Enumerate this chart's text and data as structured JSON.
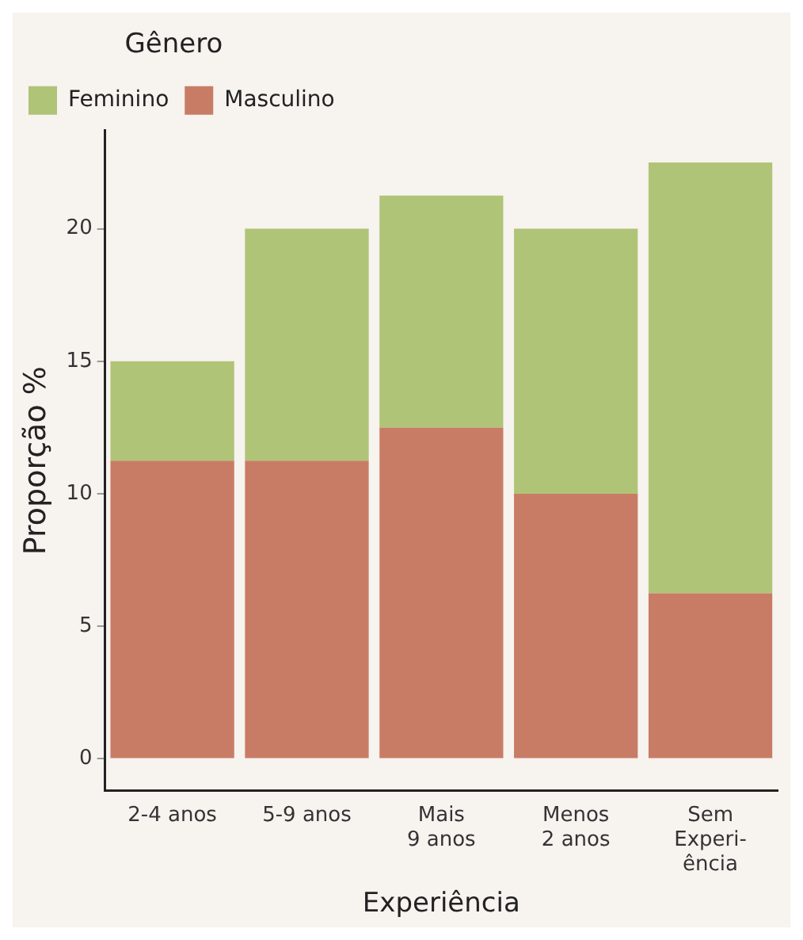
{
  "chart_data": {
    "type": "bar",
    "stacked": true,
    "xlabel": "Experiência",
    "ylabel": "Proporção %",
    "legend_title": "Gênero",
    "legend": "top left",
    "grid": false,
    "categories": [
      "2-4 anos",
      "5-9 anos",
      "Mais\n9 anos",
      "Menos\n2 anos",
      "Sem\nExperi-\nência"
    ],
    "series": [
      {
        "name": "Masculino",
        "color": "#c87c66",
        "values": [
          11.25,
          11.25,
          12.5,
          10.0,
          6.25
        ]
      },
      {
        "name": "Feminino",
        "color": "#b0c477",
        "values": [
          3.75,
          8.75,
          8.75,
          10.0,
          16.25
        ]
      }
    ],
    "ylim": [
      -1.2,
      23.7
    ],
    "yticks": [
      0,
      5,
      10,
      15,
      20
    ]
  }
}
